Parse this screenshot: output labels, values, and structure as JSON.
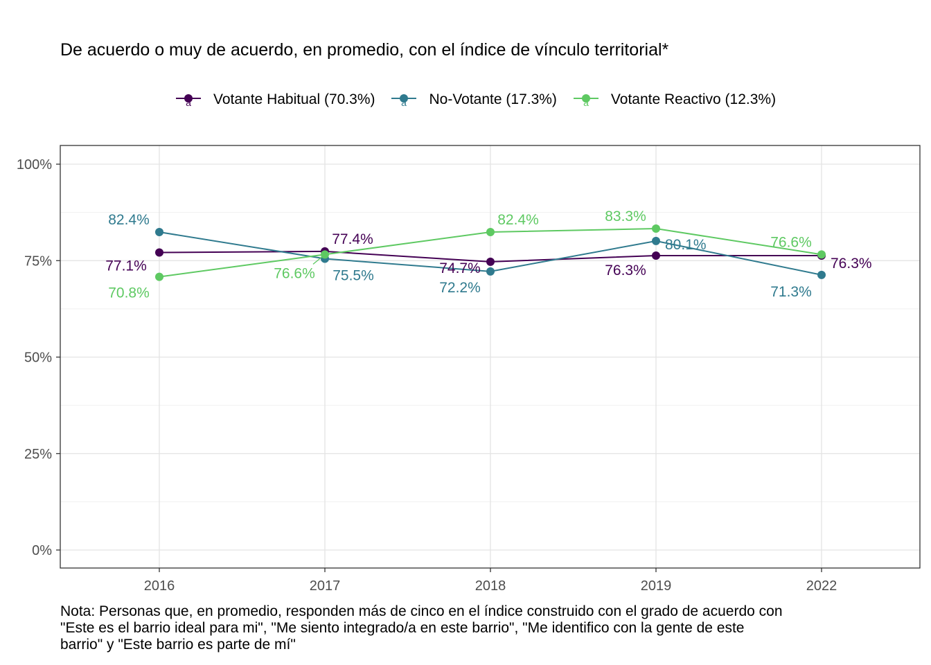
{
  "chart_data": {
    "type": "line",
    "title": "De acuerdo o muy de acuerdo, en promedio, con el índice de vínculo territorial*",
    "categories": [
      "2016",
      "2017",
      "2018",
      "2019",
      "2022"
    ],
    "ylim": [
      0,
      100
    ],
    "yticks": [
      0,
      25,
      50,
      75,
      100
    ],
    "ytick_labels": [
      "0%",
      "25%",
      "50%",
      "75%",
      "100%"
    ],
    "grid": true,
    "legend_position": "top",
    "series": [
      {
        "name": "Votante Habitual (70.3%)",
        "color": "#440154",
        "values": [
          77.1,
          77.4,
          74.7,
          76.3,
          76.3
        ],
        "labels": [
          "77.1%",
          "77.4%",
          "74.7%",
          "76.3%",
          "76.3%"
        ]
      },
      {
        "name": "No-Votante (17.3%)",
        "color": "#2f7a8e",
        "values": [
          82.4,
          75.5,
          72.2,
          80.1,
          71.3
        ],
        "labels": [
          "82.4%",
          "75.5%",
          "72.2%",
          "80.1%",
          "71.3%"
        ]
      },
      {
        "name": "Votante Reactivo (12.3%)",
        "color": "#5ec962",
        "values": [
          70.8,
          76.6,
          82.4,
          83.3,
          76.6
        ],
        "labels": [
          "70.8%",
          "76.6%",
          "82.4%",
          "83.3%",
          "76.6%"
        ]
      }
    ],
    "note": [
      "Nota: Personas que, en promedio, responden más de cinco en el índice construido con el grado de acuerdo con",
      "\"Este es el barrio ideal para mi\", \"Me siento integrado/a en este barrio\", \"Me identifico con la gente de este",
      "barrio\" y \"Este barrio es parte de mí\""
    ]
  }
}
